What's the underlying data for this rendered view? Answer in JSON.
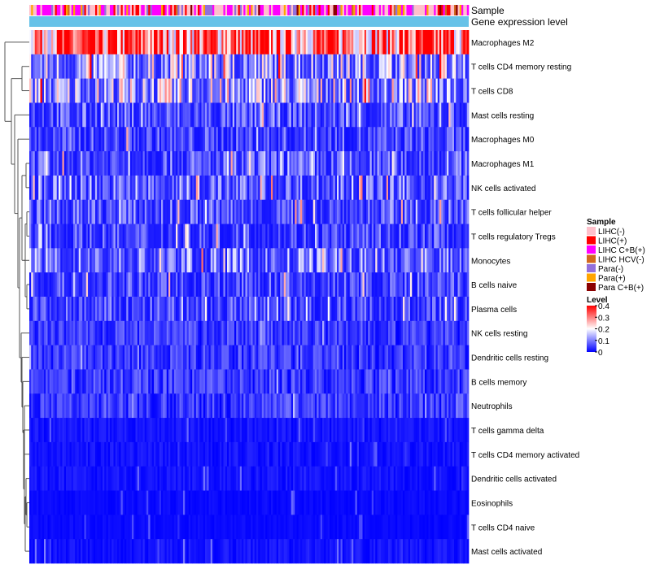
{
  "chart_data": {
    "type": "heatmap",
    "title": "",
    "annotation_tracks": [
      {
        "label": "Sample"
      },
      {
        "label": "Gene expression level"
      }
    ],
    "rows": [
      {
        "label": "Macrophages M2",
        "mean_level": 0.31
      },
      {
        "label": "T cells CD4 memory resting",
        "mean_level": 0.13
      },
      {
        "label": "T cells CD8",
        "mean_level": 0.14
      },
      {
        "label": "Mast cells resting",
        "mean_level": 0.07
      },
      {
        "label": "Macrophages M0",
        "mean_level": 0.06
      },
      {
        "label": "Macrophages M1",
        "mean_level": 0.07
      },
      {
        "label": "NK cells activated",
        "mean_level": 0.08
      },
      {
        "label": "T cells follicular helper",
        "mean_level": 0.07
      },
      {
        "label": "T cells regulatory  Tregs",
        "mean_level": 0.06
      },
      {
        "label": "Monocytes",
        "mean_level": 0.09
      },
      {
        "label": "B cells naive",
        "mean_level": 0.06
      },
      {
        "label": "Plasma cells",
        "mean_level": 0.06
      },
      {
        "label": "NK cells resting",
        "mean_level": 0.03
      },
      {
        "label": "Dendritic cells resting",
        "mean_level": 0.03
      },
      {
        "label": "B cells memory",
        "mean_level": 0.03
      },
      {
        "label": "Neutrophils",
        "mean_level": 0.03
      },
      {
        "label": "T cells gamma delta",
        "mean_level": 0.01
      },
      {
        "label": "T cells CD4 memory activated",
        "mean_level": 0.01
      },
      {
        "label": "Dendritic cells activated",
        "mean_level": 0.01
      },
      {
        "label": "Eosinophils",
        "mean_level": 0.005
      },
      {
        "label": "T cells CD4 naive",
        "mean_level": 0.005
      },
      {
        "label": "Mast cells activated",
        "mean_level": 0.01
      }
    ],
    "num_columns": 240,
    "legend_sample": {
      "title": "Sample",
      "items": [
        {
          "label": "LIHC(-)",
          "color": "#FFC0CB"
        },
        {
          "label": "LIHC(+)",
          "color": "#FF0000"
        },
        {
          "label": "LIHC C+B(+)",
          "color": "#FF00FF"
        },
        {
          "label": "LIHC HCV(-)",
          "color": "#D2691E"
        },
        {
          "label": "Para(-)",
          "color": "#9370DB"
        },
        {
          "label": "Para(+)",
          "color": "#FFA500"
        },
        {
          "label": "Para C+B(+)",
          "color": "#8B0000"
        }
      ]
    },
    "legend_level": {
      "title": "Level",
      "min": 0,
      "max": 0.4,
      "ticks": [
        "0.4",
        "0.3",
        "0.2",
        "0.1",
        "0"
      ],
      "colors": {
        "low": "#0000FF",
        "mid": "#FFFFFF",
        "high": "#FF0000"
      }
    },
    "expression_track_color": "#66C2E8"
  }
}
